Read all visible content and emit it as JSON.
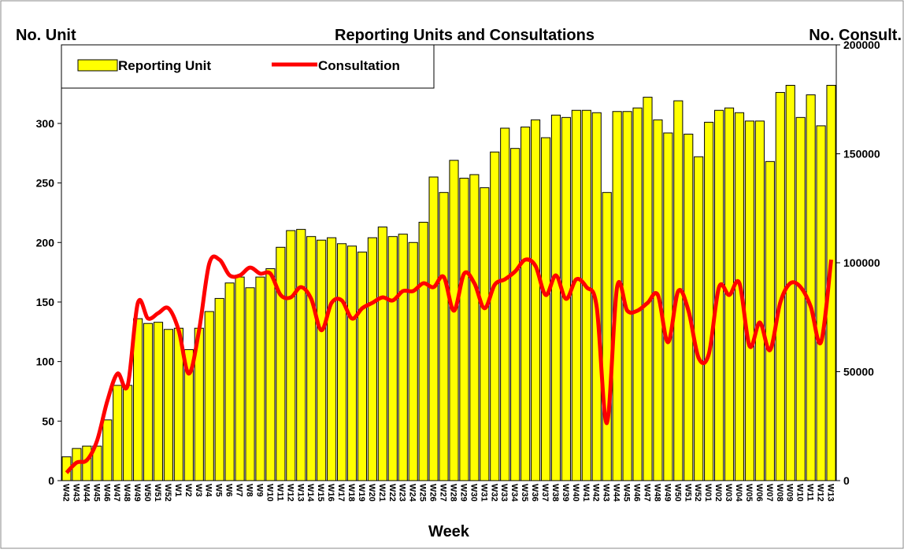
{
  "chart_data": {
    "type": "bar_line",
    "title": "Reporting Units and Consultations",
    "y_axis_label": "No. Unit",
    "y2_axis_label": "No. Consult.",
    "x_axis_label": "Week",
    "categories": [
      "W42",
      "W43",
      "W44",
      "W45",
      "W46",
      "W47",
      "W48",
      "W49",
      "W50",
      "W51",
      "W52",
      "W1",
      "W2",
      "W3",
      "W4",
      "W5",
      "W6",
      "W7",
      "W8",
      "W9",
      "W10",
      "W11",
      "W12",
      "W13",
      "W14",
      "W15",
      "W16",
      "W17",
      "W18",
      "W19",
      "W20",
      "W21",
      "W22",
      "W23",
      "W24",
      "W25",
      "W26",
      "W27",
      "W28",
      "W29",
      "W30",
      "W31",
      "W32",
      "W33",
      "W34",
      "W35",
      "W36",
      "W37",
      "W38",
      "W39",
      "W40",
      "W41",
      "W42",
      "W43",
      "W44",
      "W45",
      "W46",
      "W47",
      "W48",
      "W49",
      "W50",
      "W51",
      "W52",
      "W01",
      "W02",
      "W03",
      "W04",
      "W05",
      "W06",
      "W07",
      "W08",
      "W09",
      "W10",
      "W11",
      "W12",
      "W13"
    ],
    "series": [
      {
        "name": "Reporting Unit",
        "color": "#ffff00",
        "values": [
          20,
          27,
          29,
          29,
          51,
          80,
          80,
          136,
          132,
          133,
          127,
          128,
          110,
          128,
          142,
          153,
          166,
          171,
          162,
          171,
          178,
          196,
          210,
          211,
          205,
          202,
          204,
          199,
          197,
          192,
          204,
          213,
          205,
          207,
          200,
          217,
          255,
          242,
          269,
          254,
          257,
          246,
          276,
          296,
          279,
          297,
          303,
          288,
          307,
          305,
          311,
          311,
          309,
          242,
          310,
          310,
          313,
          322,
          303,
          292,
          319,
          291,
          272,
          301,
          311,
          313,
          309,
          302,
          302,
          268,
          326,
          332,
          305,
          324,
          298,
          332
        ]
      },
      {
        "name": "Consultation",
        "color": "#ff0000",
        "axis": "y2",
        "values": [
          3600,
          8300,
          9400,
          18400,
          36500,
          49100,
          43700,
          81600,
          74400,
          76900,
          79100,
          69000,
          49100,
          69000,
          99600,
          101400,
          94200,
          94200,
          97800,
          95000,
          95000,
          85200,
          84100,
          88800,
          83400,
          69000,
          81600,
          82700,
          74400,
          79100,
          81600,
          84100,
          82700,
          87000,
          87000,
          90600,
          88800,
          93500,
          78000,
          95000,
          90600,
          79100,
          89900,
          92400,
          96000,
          101400,
          98500,
          85200,
          94200,
          83400,
          92400,
          88800,
          79800,
          26400,
          88800,
          78000,
          78000,
          81600,
          85200,
          63500,
          87000,
          78000,
          56300,
          58100,
          88800,
          85200,
          90600,
          61700,
          72600,
          59900,
          81600,
          90600,
          88800,
          79800,
          63500,
          101400
        ]
      }
    ],
    "ylim": [
      0,
      366
    ],
    "yticks": [
      0,
      50,
      100,
      150,
      200,
      250,
      300
    ],
    "y2lim": [
      0,
      200000
    ],
    "y2ticks": [
      0,
      50000,
      100000,
      150000,
      200000
    ],
    "legend": "upper left"
  }
}
